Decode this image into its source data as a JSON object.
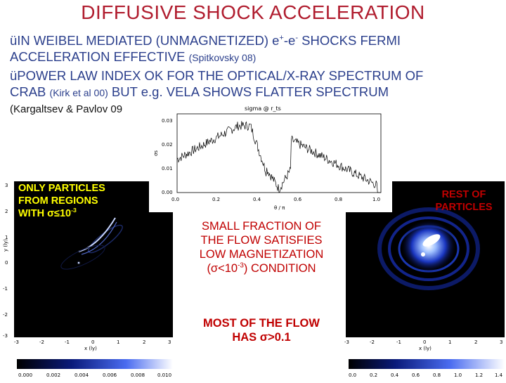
{
  "title": "DIFFUSIVE SHOCK ACCELERATION",
  "bullets": [
    {
      "check": "ü",
      "l1a": "IN WEIBEL MEDIATED (UNMAGNETIZED) e",
      "l1b": "+",
      "l1c": "-e",
      "l1d": "-",
      "l1e": " SHOCKS FERMI",
      "l2a": "ACCELERATION EFFECTIVE ",
      "l2b": "(Spitkovsky 08)"
    },
    {
      "check": "ü",
      "l1": "POWER LAW INDEX OK FOR THE OPTICAL/X-RAY SPECTRUM OF",
      "l2a": "CRAB ",
      "l2b": "(Kirk et al 00)",
      "l2c": " BUT e.g. VELA SHOWS FLATTER SPECTRUM"
    }
  ],
  "citation": "(Kargaltsev & Pavlov 09",
  "center_plot": {
    "title": "sigma @ r_ts",
    "ylabel": "σs",
    "xlabel": "θ / π",
    "yticks": [
      "0.00",
      "0.01",
      "0.02",
      "0.03"
    ],
    "xticks": [
      "0.0",
      "0.2",
      "0.4",
      "0.6",
      "0.8",
      "1.0"
    ]
  },
  "left_panel": {
    "label_l1": "ONLY PARTICLES",
    "label_l2": "FROM REGIONS",
    "label_l3a": "WITH ",
    "label_sigma": "σ≤10",
    "label_exp": "-3",
    "xlabel": "x (ly)",
    "ylabel": "y (ly)",
    "xticks": [
      "-3",
      "-2",
      "-1",
      "0",
      "1",
      "2",
      "3"
    ],
    "yticks": [
      "3",
      "2",
      "1",
      "0",
      "-1",
      "-2",
      "-3"
    ],
    "cbar_ticks": [
      "0.000",
      "0.002",
      "0.004",
      "0.006",
      "0.008",
      "0.010"
    ]
  },
  "right_panel": {
    "label_l1": "REST OF",
    "label_l2": "PARTICLES",
    "xlabel": "x (ly)",
    "xticks": [
      "-3",
      "-2",
      "-1",
      "0",
      "1",
      "2",
      "3"
    ],
    "cbar_ticks": [
      "0.0",
      "0.2",
      "0.4",
      "0.6",
      "0.8",
      "1.0",
      "1.2",
      "1.4"
    ]
  },
  "mid_text": {
    "l1": "SMALL FRACTION OF",
    "l2": "THE FLOW SATISFIES",
    "l3": "LOW MAGNETIZATION",
    "l4a": "(σ<10",
    "l4b": "-3",
    "l4c": ") CONDITION"
  },
  "mid_text2": {
    "l1": "MOST OF THE FLOW",
    "l2": "HAS σ>0.1"
  }
}
